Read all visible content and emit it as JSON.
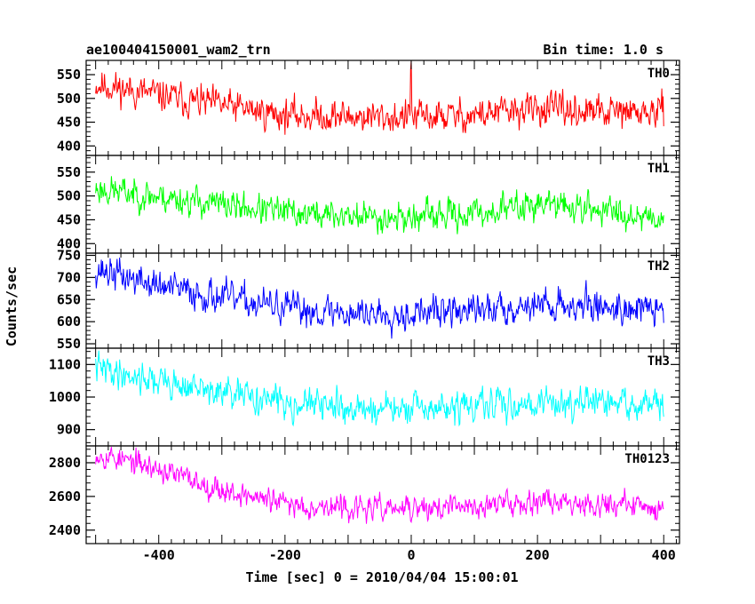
{
  "header": {
    "title": "ae100404150001_wam2_trn",
    "bin_time": "Bin time: 1.0 s"
  },
  "chart_data": {
    "type": "line",
    "xlabel": "Time [sec] 0 = 2010/04/04 15:00:01",
    "ylabel": "Counts/sec",
    "xlim": [
      -515,
      425
    ],
    "x_ticks": [
      -400,
      -200,
      0,
      200,
      400
    ],
    "x_range": [
      -500,
      400
    ],
    "bin": 1.0,
    "panels": [
      {
        "name": "TH0",
        "color": "#ff0000",
        "ylim": [
          380,
          580
        ],
        "y_ticks": [
          400,
          450,
          500,
          550
        ],
        "trend": [
          [
            -500,
            530
          ],
          [
            -350,
            495
          ],
          [
            -200,
            465
          ],
          [
            -100,
            462
          ],
          [
            0,
            460
          ],
          [
            100,
            465
          ],
          [
            200,
            478
          ],
          [
            300,
            470
          ],
          [
            400,
            470
          ]
        ],
        "noise": 26,
        "spikes": [
          [
            0,
            580
          ],
          [
            -1,
            560
          ]
        ],
        "seed": 11
      },
      {
        "name": "TH1",
        "color": "#00ff00",
        "ylim": [
          380,
          585
        ],
        "y_ticks": [
          400,
          450,
          500,
          550
        ],
        "trend": [
          [
            -500,
            515
          ],
          [
            -350,
            490
          ],
          [
            -200,
            465
          ],
          [
            -100,
            458
          ],
          [
            0,
            455
          ],
          [
            100,
            462
          ],
          [
            200,
            485
          ],
          [
            300,
            470
          ],
          [
            400,
            455
          ]
        ],
        "noise": 24,
        "spikes": [],
        "seed": 23
      },
      {
        "name": "TH2",
        "color": "#0000ff",
        "ylim": [
          540,
          755
        ],
        "y_ticks": [
          550,
          600,
          650,
          700,
          750
        ],
        "trend": [
          [
            -500,
            720
          ],
          [
            -400,
            680
          ],
          [
            -300,
            655
          ],
          [
            -200,
            630
          ],
          [
            -100,
            620
          ],
          [
            0,
            620
          ],
          [
            100,
            625
          ],
          [
            200,
            640
          ],
          [
            300,
            635
          ],
          [
            400,
            625
          ]
        ],
        "noise": 28,
        "spikes": [],
        "seed": 37
      },
      {
        "name": "TH3",
        "color": "#00ffff",
        "ylim": [
          850,
          1150
        ],
        "y_ticks": [
          900,
          1000,
          1100
        ],
        "trend": [
          [
            -500,
            1090
          ],
          [
            -400,
            1050
          ],
          [
            -300,
            1010
          ],
          [
            -200,
            985
          ],
          [
            -100,
            965
          ],
          [
            0,
            960
          ],
          [
            100,
            970
          ],
          [
            200,
            985
          ],
          [
            300,
            980
          ],
          [
            400,
            975
          ]
        ],
        "noise": 36,
        "spikes": [],
        "seed": 41
      },
      {
        "name": "TH0123",
        "color": "#ff00ff",
        "ylim": [
          2320,
          2900
        ],
        "y_ticks": [
          2400,
          2600,
          2800
        ],
        "trend": [
          [
            -500,
            2860
          ],
          [
            -400,
            2760
          ],
          [
            -300,
            2640
          ],
          [
            -200,
            2555
          ],
          [
            -100,
            2530
          ],
          [
            0,
            2525
          ],
          [
            100,
            2540
          ],
          [
            200,
            2580
          ],
          [
            300,
            2560
          ],
          [
            400,
            2530
          ]
        ],
        "noise": 55,
        "spikes": [],
        "seed": 53
      }
    ]
  }
}
